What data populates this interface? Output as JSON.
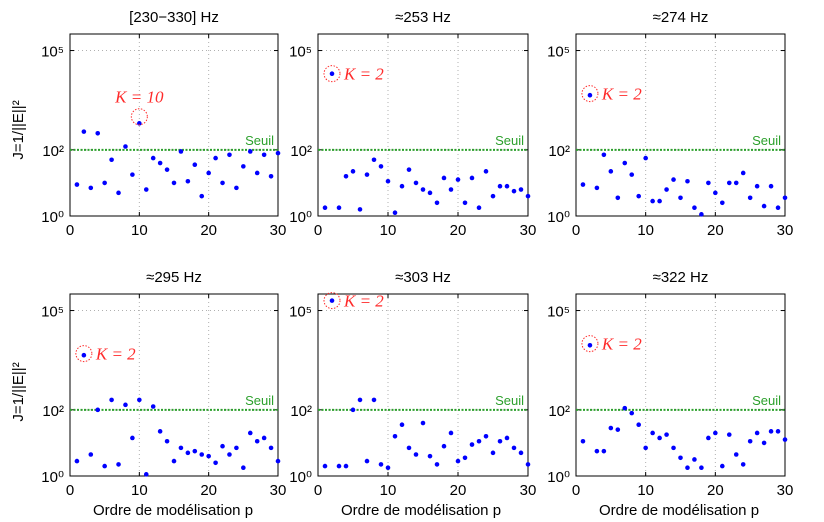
{
  "figure": {
    "ylabel": "J=1/||E||²",
    "xlabel": "Ordre de modélisation p"
  },
  "colors": {
    "points": "#0000ff",
    "threshold": "#2ca02c",
    "annotation": "#ff2a2a",
    "grid": "#b0b0b0"
  },
  "chart_data": [
    {
      "type": "scatter",
      "title": "[230−330] Hz",
      "xlim": [
        0,
        30
      ],
      "ylim_log10": [
        0,
        5.5
      ],
      "yscale": "log",
      "xticks": [
        "0",
        "10",
        "20",
        "30"
      ],
      "yticks": [
        "10⁰",
        "10²",
        "10⁵"
      ],
      "grid": true,
      "threshold": {
        "label": "Seuil",
        "value": 100
      },
      "annotation": {
        "text": "K = 10",
        "x": 10,
        "y": 1000
      },
      "series": [
        {
          "x": [
            1,
            2,
            3,
            4,
            5,
            6,
            7,
            8,
            9,
            10,
            11,
            12,
            13,
            14,
            15,
            16,
            17,
            18,
            19,
            20,
            21,
            22,
            23,
            24,
            25,
            26,
            27,
            28,
            29,
            30
          ],
          "log10_y": [
            0.95,
            2.55,
            0.85,
            2.5,
            1.0,
            1.7,
            0.7,
            2.1,
            1.25,
            2.8,
            0.8,
            1.75,
            1.6,
            1.4,
            1.0,
            1.95,
            1.05,
            1.55,
            0.6,
            1.3,
            1.75,
            1.0,
            1.85,
            0.85,
            1.5,
            1.95,
            1.3,
            1.85,
            1.2,
            1.9
          ]
        }
      ]
    },
    {
      "type": "scatter",
      "title": "≈253 Hz",
      "xlim": [
        0,
        30
      ],
      "ylim_log10": [
        0,
        5.5
      ],
      "yscale": "log",
      "xticks": [
        "0",
        "10",
        "20",
        "30"
      ],
      "yticks": [
        "10⁰",
        "10²",
        "10⁵"
      ],
      "grid": true,
      "threshold": {
        "label": "Seuil",
        "value": 100
      },
      "annotation": {
        "text": "K = 2",
        "x": 2,
        "y": 20000
      },
      "series": [
        {
          "x": [
            1,
            2,
            3,
            4,
            5,
            6,
            7,
            8,
            9,
            10,
            11,
            12,
            13,
            14,
            15,
            16,
            17,
            18,
            19,
            20,
            21,
            22,
            23,
            24,
            25,
            26,
            27,
            28,
            29,
            30
          ],
          "log10_y": [
            0.25,
            4.3,
            0.25,
            1.2,
            1.35,
            0.2,
            1.25,
            1.7,
            1.5,
            1.05,
            0.1,
            0.9,
            1.4,
            1.0,
            0.8,
            0.7,
            0.4,
            1.15,
            0.8,
            1.1,
            0.4,
            1.15,
            0.25,
            1.35,
            0.6,
            0.9,
            0.9,
            0.75,
            0.8,
            0.6
          ]
        }
      ]
    },
    {
      "type": "scatter",
      "title": "≈274 Hz",
      "xlim": [
        0,
        30
      ],
      "ylim_log10": [
        0,
        5.5
      ],
      "yscale": "log",
      "xticks": [
        "0",
        "10",
        "20",
        "30"
      ],
      "yticks": [
        "10⁰",
        "10²",
        "10⁵"
      ],
      "grid": true,
      "threshold": {
        "label": "Seuil",
        "value": 100
      },
      "annotation": {
        "text": "K = 2",
        "x": 2,
        "y": 5000
      },
      "series": [
        {
          "x": [
            1,
            2,
            3,
            4,
            5,
            6,
            7,
            8,
            9,
            10,
            11,
            12,
            13,
            14,
            15,
            16,
            17,
            18,
            19,
            20,
            21,
            22,
            23,
            24,
            25,
            26,
            27,
            28,
            29,
            30
          ],
          "log10_y": [
            0.95,
            3.65,
            0.85,
            1.85,
            1.35,
            0.55,
            1.6,
            1.25,
            0.6,
            1.75,
            0.45,
            0.45,
            0.8,
            1.1,
            0.55,
            1.05,
            0.25,
            0.05,
            1.0,
            0.7,
            0.4,
            1.0,
            1.0,
            1.3,
            0.55,
            0.9,
            0.3,
            0.9,
            0.25,
            0.55
          ]
        }
      ]
    },
    {
      "type": "scatter",
      "title": "≈295 Hz",
      "xlim": [
        0,
        30
      ],
      "ylim_log10": [
        0,
        5.5
      ],
      "yscale": "log",
      "xticks": [
        "0",
        "10",
        "20",
        "30"
      ],
      "yticks": [
        "10⁰",
        "10²",
        "10⁵"
      ],
      "grid": true,
      "threshold": {
        "label": "Seuil",
        "value": 100
      },
      "annotation": {
        "text": "K = 2",
        "x": 2,
        "y": 5000
      },
      "series": [
        {
          "x": [
            1,
            2,
            3,
            4,
            5,
            6,
            7,
            8,
            9,
            10,
            11,
            12,
            13,
            14,
            15,
            16,
            17,
            18,
            19,
            20,
            21,
            22,
            23,
            24,
            25,
            26,
            27,
            28,
            29,
            30
          ],
          "log10_y": [
            0.45,
            3.65,
            0.65,
            2.0,
            0.3,
            2.3,
            0.35,
            2.15,
            1.15,
            2.3,
            0.05,
            2.1,
            1.35,
            1.05,
            0.45,
            0.85,
            0.7,
            0.75,
            0.65,
            0.6,
            0.4,
            0.9,
            0.65,
            0.85,
            0.25,
            1.3,
            1.05,
            1.15,
            0.85,
            0.45
          ]
        }
      ]
    },
    {
      "type": "scatter",
      "title": "≈303 Hz",
      "xlim": [
        0,
        30
      ],
      "ylim_log10": [
        0,
        5.5
      ],
      "yscale": "log",
      "xticks": [
        "0",
        "10",
        "20",
        "30"
      ],
      "yticks": [
        "10⁰",
        "10²",
        "10⁵"
      ],
      "grid": true,
      "threshold": {
        "label": "Seuil",
        "value": 100
      },
      "annotation": {
        "text": "K = 2",
        "x": 2,
        "y": 200000
      },
      "series": [
        {
          "x": [
            1,
            2,
            3,
            4,
            5,
            6,
            7,
            8,
            9,
            10,
            11,
            12,
            13,
            14,
            15,
            16,
            17,
            18,
            19,
            20,
            21,
            22,
            23,
            24,
            25,
            26,
            27,
            28,
            29,
            30
          ],
          "log10_y": [
            0.3,
            5.3,
            0.3,
            0.3,
            2.0,
            2.3,
            0.45,
            2.3,
            0.35,
            0.25,
            1.2,
            1.55,
            0.85,
            0.65,
            1.6,
            0.6,
            0.35,
            0.9,
            1.3,
            0.45,
            0.55,
            0.95,
            1.05,
            1.2,
            0.7,
            1.05,
            1.15,
            0.85,
            0.7,
            0.35
          ]
        }
      ]
    },
    {
      "type": "scatter",
      "title": "≈322 Hz",
      "xlim": [
        0,
        30
      ],
      "ylim_log10": [
        0,
        5.5
      ],
      "yscale": "log",
      "xticks": [
        "0",
        "10",
        "20",
        "30"
      ],
      "yticks": [
        "10⁰",
        "10²",
        "10⁵"
      ],
      "grid": true,
      "threshold": {
        "label": "Seuil",
        "value": 100
      },
      "annotation": {
        "text": "K = 2",
        "x": 2,
        "y": 10000
      },
      "series": [
        {
          "x": [
            1,
            2,
            3,
            4,
            5,
            6,
            7,
            8,
            9,
            10,
            11,
            12,
            13,
            14,
            15,
            16,
            17,
            18,
            19,
            20,
            21,
            22,
            23,
            24,
            25,
            26,
            27,
            28,
            29,
            30
          ],
          "log10_y": [
            1.05,
            3.95,
            0.75,
            0.75,
            1.45,
            1.4,
            2.05,
            1.9,
            1.55,
            0.85,
            1.3,
            1.15,
            1.25,
            0.85,
            0.55,
            0.25,
            0.5,
            0.25,
            1.15,
            1.3,
            0.3,
            1.25,
            0.65,
            0.35,
            1.05,
            1.3,
            1.0,
            1.35,
            1.35,
            1.1
          ]
        }
      ]
    }
  ]
}
